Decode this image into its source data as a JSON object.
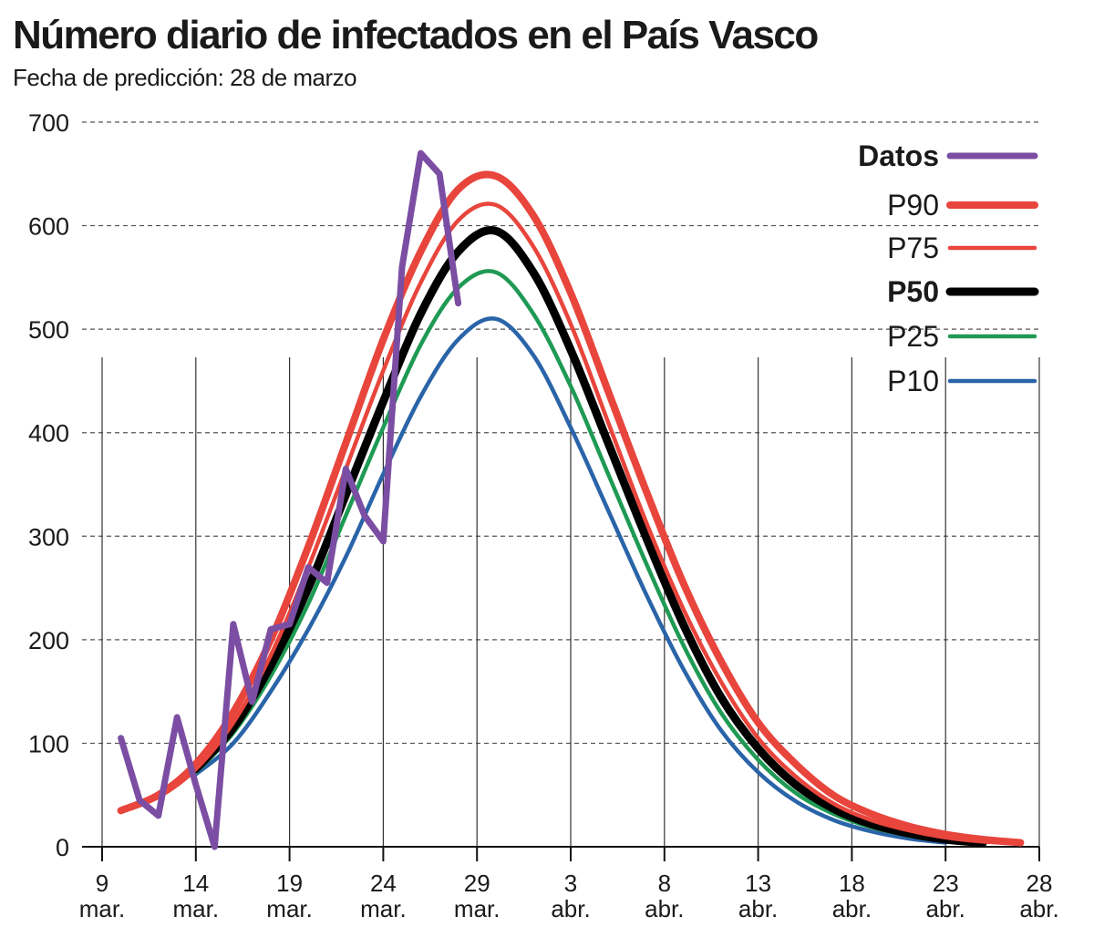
{
  "header": {
    "title": "Número diario de infectados en el País Vasco",
    "subtitle": "Fecha de predicción: 28 de marzo"
  },
  "chart_data": {
    "type": "line",
    "xlabel": "",
    "ylabel": "",
    "ylim": [
      0,
      700
    ],
    "yticks": [
      0,
      100,
      200,
      300,
      400,
      500,
      600,
      700
    ],
    "x_range": [
      "2020-03-09",
      "2020-04-28"
    ],
    "x_ticks": [
      {
        "date": "2020-03-09",
        "day": "9",
        "month": "mar."
      },
      {
        "date": "2020-03-14",
        "day": "14",
        "month": "mar."
      },
      {
        "date": "2020-03-19",
        "day": "19",
        "month": "mar."
      },
      {
        "date": "2020-03-24",
        "day": "24",
        "month": "mar."
      },
      {
        "date": "2020-03-29",
        "day": "29",
        "month": "mar."
      },
      {
        "date": "2020-04-03",
        "day": "3",
        "month": "abr."
      },
      {
        "date": "2020-04-08",
        "day": "8",
        "month": "abr."
      },
      {
        "date": "2020-04-13",
        "day": "13",
        "month": "abr."
      },
      {
        "date": "2020-04-18",
        "day": "18",
        "month": "abr."
      },
      {
        "date": "2020-04-23",
        "day": "23",
        "month": "abr."
      },
      {
        "date": "2020-04-28",
        "day": "28",
        "month": "abr."
      }
    ],
    "grid": {
      "horizontal": "dashed",
      "vertical": "solid"
    },
    "legend_position": "top-right",
    "series": [
      {
        "name": "Datos",
        "color": "#7b4ea3",
        "bold": true,
        "x": [
          "2020-03-10",
          "2020-03-11",
          "2020-03-12",
          "2020-03-13",
          "2020-03-14",
          "2020-03-15",
          "2020-03-16",
          "2020-03-17",
          "2020-03-18",
          "2020-03-19",
          "2020-03-20",
          "2020-03-21",
          "2020-03-22",
          "2020-03-23",
          "2020-03-24",
          "2020-03-25",
          "2020-03-26",
          "2020-03-27",
          "2020-03-28"
        ],
        "y": [
          105,
          45,
          30,
          125,
          60,
          0,
          215,
          140,
          210,
          215,
          270,
          255,
          365,
          320,
          295,
          560,
          670,
          650,
          525
        ]
      },
      {
        "name": "P90",
        "color": "#e8453c",
        "bold": false,
        "x": [
          "2020-03-10",
          "2020-03-12",
          "2020-03-14",
          "2020-03-16",
          "2020-03-18",
          "2020-03-20",
          "2020-03-22",
          "2020-03-24",
          "2020-03-26",
          "2020-03-28",
          "2020-03-30",
          "2020-04-01",
          "2020-04-03",
          "2020-04-05",
          "2020-04-07",
          "2020-04-09",
          "2020-04-11",
          "2020-04-13",
          "2020-04-15",
          "2020-04-17",
          "2020-04-19",
          "2020-04-21",
          "2020-04-23",
          "2020-04-25",
          "2020-04-27"
        ],
        "y": [
          35,
          50,
          80,
          130,
          200,
          290,
          390,
          490,
          575,
          635,
          648,
          610,
          535,
          440,
          345,
          255,
          180,
          120,
          80,
          50,
          32,
          20,
          12,
          7,
          4
        ]
      },
      {
        "name": "P75",
        "color": "#e8453c",
        "bold": false,
        "x": [
          "2020-03-10",
          "2020-03-12",
          "2020-03-14",
          "2020-03-16",
          "2020-03-18",
          "2020-03-20",
          "2020-03-22",
          "2020-03-24",
          "2020-03-26",
          "2020-03-28",
          "2020-03-30",
          "2020-04-01",
          "2020-04-03",
          "2020-04-05",
          "2020-04-07",
          "2020-04-09",
          "2020-04-11",
          "2020-04-13",
          "2020-04-15",
          "2020-04-17",
          "2020-04-19",
          "2020-04-21",
          "2020-04-23",
          "2020-04-25",
          "2020-04-27"
        ],
        "y": [
          35,
          48,
          75,
          120,
          185,
          270,
          365,
          460,
          545,
          605,
          620,
          580,
          505,
          410,
          315,
          230,
          160,
          105,
          68,
          42,
          26,
          16,
          9,
          5,
          3
        ]
      },
      {
        "name": "P50",
        "color": "#000000",
        "bold": true,
        "x": [
          "2020-03-14",
          "2020-03-16",
          "2020-03-18",
          "2020-03-20",
          "2020-03-22",
          "2020-03-24",
          "2020-03-26",
          "2020-03-28",
          "2020-03-30",
          "2020-04-01",
          "2020-04-03",
          "2020-04-05",
          "2020-04-07",
          "2020-04-09",
          "2020-04-11",
          "2020-04-13",
          "2020-04-15",
          "2020-04-17",
          "2020-04-19",
          "2020-04-21",
          "2020-04-23",
          "2020-04-25"
        ],
        "y": [
          75,
          115,
          175,
          250,
          340,
          430,
          515,
          575,
          595,
          555,
          480,
          390,
          300,
          215,
          145,
          95,
          60,
          37,
          22,
          13,
          7,
          4
        ]
      },
      {
        "name": "P25",
        "color": "#1f9a54",
        "bold": false,
        "x": [
          "2020-03-14",
          "2020-03-16",
          "2020-03-18",
          "2020-03-20",
          "2020-03-22",
          "2020-03-24",
          "2020-03-26",
          "2020-03-28",
          "2020-03-30",
          "2020-04-01",
          "2020-04-03",
          "2020-04-05",
          "2020-04-07",
          "2020-04-09",
          "2020-04-11",
          "2020-04-13",
          "2020-04-15",
          "2020-04-17",
          "2020-04-19",
          "2020-04-21",
          "2020-04-23",
          "2020-04-25"
        ],
        "y": [
          72,
          110,
          165,
          235,
          320,
          405,
          485,
          540,
          555,
          515,
          445,
          360,
          275,
          195,
          130,
          84,
          52,
          32,
          19,
          11,
          6,
          3
        ]
      },
      {
        "name": "P10",
        "color": "#2a64a8",
        "bold": false,
        "x": [
          "2020-03-14",
          "2020-03-16",
          "2020-03-18",
          "2020-03-20",
          "2020-03-22",
          "2020-03-24",
          "2020-03-26",
          "2020-03-28",
          "2020-03-30",
          "2020-04-01",
          "2020-04-03",
          "2020-04-05",
          "2020-04-07",
          "2020-04-09",
          "2020-04-11",
          "2020-04-13",
          "2020-04-15",
          "2020-04-17",
          "2020-04-19",
          "2020-04-21",
          "2020-04-23"
        ],
        "y": [
          70,
          100,
          150,
          210,
          280,
          360,
          435,
          490,
          510,
          475,
          405,
          325,
          245,
          172,
          113,
          72,
          44,
          26,
          15,
          8,
          4
        ]
      }
    ]
  }
}
